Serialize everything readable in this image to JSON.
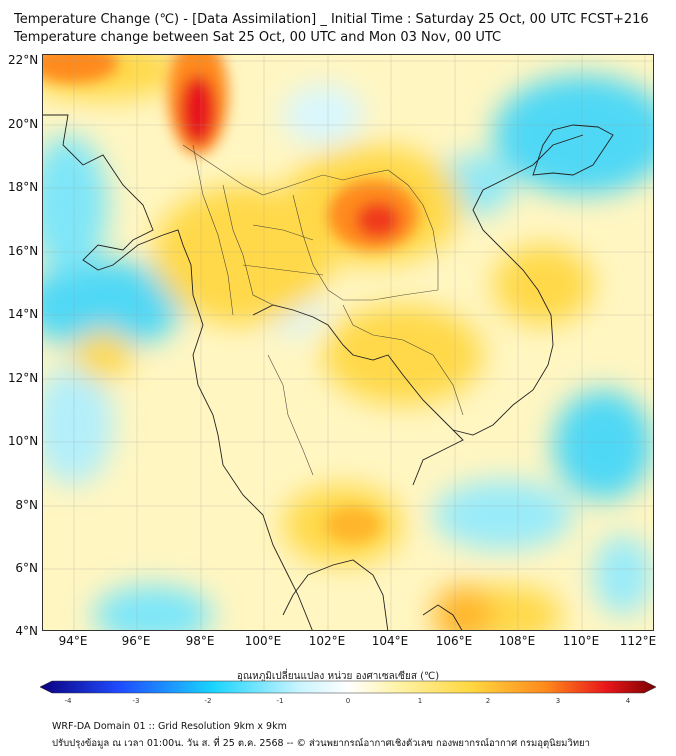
{
  "title": {
    "line1": "Temperature Change (℃) - [Data Assimilation] _ Initial Time : Saturday 25 Oct, 00 UTC FCST+216",
    "line2": "Temperature change between Sat 25 Oct, 00 UTC and Mon 03 Nov, 00 UTC"
  },
  "axes": {
    "lat_labels": [
      "22°N",
      "20°N",
      "18°N",
      "16°N",
      "14°N",
      "12°N",
      "10°N",
      "8°N",
      "6°N",
      "4°N"
    ],
    "lon_labels": [
      "94°E",
      "96°E",
      "98°E",
      "100°E",
      "102°E",
      "104°E",
      "106°E",
      "108°E",
      "110°E",
      "112°E"
    ],
    "lat_range": [
      4,
      22
    ],
    "lon_range": [
      93,
      112.3
    ]
  },
  "colorbar": {
    "title": "อุณหภูมิเปลี่ยนแปลง หน่วย องศาเซลเซียส (℃)",
    "ticks": [
      "-4",
      "-3",
      "-2",
      "-1",
      "0",
      "1",
      "2",
      "3",
      "4"
    ],
    "range": [
      -4,
      4
    ],
    "colors": {
      "darkblue": "#0b0080",
      "blue": "#1f4cff",
      "cyan": "#19d4ff",
      "lightcyan": "#c8f4ff",
      "white": "#ffffff",
      "lightyellow": "#fff3a8",
      "yellow": "#ffd740",
      "orange": "#ff8a1c",
      "red": "#e8161a",
      "darkred": "#7a0000"
    }
  },
  "footer": {
    "line1": "WRF-DA Domain 01 :: Grid Resolution 9km x 9km",
    "line2": "ปรับปรุงข้อมูล ณ เวลา 01:00น. วัน ส. ที่ 25 ต.ค. 2568 -- © ส่วนพยากรณ์อากาศเชิงตัวเลข กองพยากรณ์อากาศ กรมอุตุนิยมวิทยา"
  }
}
